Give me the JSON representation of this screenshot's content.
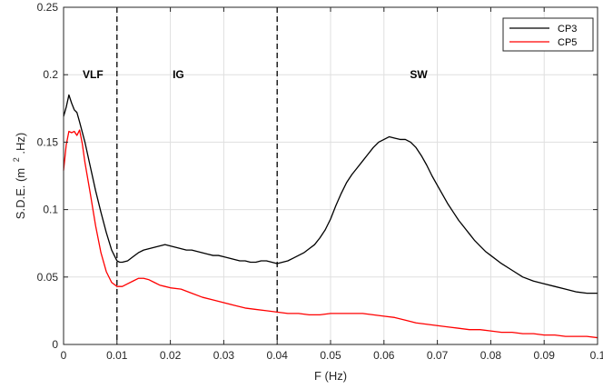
{
  "chart_data": {
    "type": "line",
    "xlabel": "F (Hz)",
    "ylabel_main": "S.D.E. (m",
    "ylabel_sup": "2",
    "ylabel_tail": ".Hz)",
    "xlim": [
      0,
      0.1
    ],
    "ylim": [
      0,
      0.25
    ],
    "x_ticks": [
      0,
      0.01,
      0.02,
      0.03,
      0.04,
      0.05,
      0.06,
      0.07,
      0.08,
      0.09,
      0.1
    ],
    "x_tick_labels": [
      "0",
      "0.01",
      "0.02",
      "0.03",
      "0.04",
      "0.05",
      "0.06",
      "0.07",
      "0.08",
      "0.09",
      "0.1"
    ],
    "y_ticks": [
      0,
      0.05,
      0.1,
      0.15,
      0.2,
      0.25
    ],
    "y_tick_labels": [
      "0",
      "0.05",
      "0.1",
      "0.15",
      "0.2",
      "0.25"
    ],
    "grid": true,
    "legend_position": "top-right",
    "region_boundaries": [
      0.01,
      0.04
    ],
    "regions": [
      {
        "label": "VLF",
        "x": 0.0055,
        "y": 0.2
      },
      {
        "label": "IG",
        "x": 0.0215,
        "y": 0.2
      },
      {
        "label": "SW",
        "x": 0.0665,
        "y": 0.2
      }
    ],
    "series": [
      {
        "name": "CP3",
        "color": "#000000",
        "x": [
          0,
          0.0005,
          0.001,
          0.0015,
          0.002,
          0.0025,
          0.003,
          0.004,
          0.005,
          0.006,
          0.007,
          0.008,
          0.009,
          0.01,
          0.0105,
          0.011,
          0.012,
          0.013,
          0.014,
          0.015,
          0.016,
          0.017,
          0.018,
          0.019,
          0.02,
          0.021,
          0.022,
          0.023,
          0.024,
          0.025,
          0.026,
          0.027,
          0.028,
          0.029,
          0.03,
          0.031,
          0.032,
          0.033,
          0.034,
          0.035,
          0.036,
          0.037,
          0.038,
          0.039,
          0.04,
          0.041,
          0.042,
          0.043,
          0.044,
          0.045,
          0.046,
          0.047,
          0.048,
          0.049,
          0.05,
          0.051,
          0.052,
          0.053,
          0.054,
          0.055,
          0.056,
          0.057,
          0.058,
          0.059,
          0.06,
          0.061,
          0.062,
          0.063,
          0.064,
          0.065,
          0.066,
          0.067,
          0.068,
          0.069,
          0.07,
          0.071,
          0.072,
          0.073,
          0.074,
          0.075,
          0.076,
          0.077,
          0.078,
          0.079,
          0.08,
          0.082,
          0.084,
          0.086,
          0.088,
          0.09,
          0.092,
          0.094,
          0.096,
          0.098,
          0.1
        ],
        "y": [
          0.169,
          0.176,
          0.185,
          0.179,
          0.174,
          0.172,
          0.165,
          0.15,
          0.132,
          0.114,
          0.098,
          0.083,
          0.07,
          0.062,
          0.061,
          0.061,
          0.062,
          0.065,
          0.068,
          0.07,
          0.071,
          0.072,
          0.073,
          0.074,
          0.073,
          0.072,
          0.071,
          0.07,
          0.07,
          0.069,
          0.068,
          0.067,
          0.066,
          0.066,
          0.065,
          0.064,
          0.063,
          0.062,
          0.062,
          0.061,
          0.061,
          0.062,
          0.062,
          0.061,
          0.06,
          0.061,
          0.062,
          0.064,
          0.066,
          0.068,
          0.071,
          0.074,
          0.079,
          0.085,
          0.093,
          0.103,
          0.112,
          0.12,
          0.126,
          0.131,
          0.136,
          0.141,
          0.146,
          0.15,
          0.152,
          0.154,
          0.153,
          0.152,
          0.152,
          0.15,
          0.146,
          0.14,
          0.133,
          0.125,
          0.118,
          0.111,
          0.104,
          0.098,
          0.092,
          0.087,
          0.082,
          0.077,
          0.073,
          0.069,
          0.066,
          0.06,
          0.055,
          0.05,
          0.047,
          0.045,
          0.043,
          0.041,
          0.039,
          0.038,
          0.038
        ]
      },
      {
        "name": "CP5",
        "color": "#ff0000",
        "x": [
          0,
          0.0005,
          0.001,
          0.0015,
          0.002,
          0.0025,
          0.003,
          0.0035,
          0.004,
          0.005,
          0.006,
          0.007,
          0.008,
          0.009,
          0.01,
          0.011,
          0.012,
          0.013,
          0.014,
          0.015,
          0.016,
          0.017,
          0.018,
          0.019,
          0.02,
          0.022,
          0.024,
          0.026,
          0.028,
          0.03,
          0.032,
          0.034,
          0.036,
          0.038,
          0.04,
          0.042,
          0.044,
          0.046,
          0.048,
          0.05,
          0.052,
          0.054,
          0.056,
          0.058,
          0.06,
          0.062,
          0.064,
          0.066,
          0.068,
          0.07,
          0.072,
          0.074,
          0.076,
          0.078,
          0.08,
          0.082,
          0.084,
          0.086,
          0.088,
          0.09,
          0.092,
          0.094,
          0.096,
          0.098,
          0.1
        ],
        "y": [
          0.129,
          0.148,
          0.158,
          0.157,
          0.158,
          0.155,
          0.159,
          0.149,
          0.135,
          0.112,
          0.088,
          0.068,
          0.054,
          0.046,
          0.043,
          0.043,
          0.045,
          0.047,
          0.049,
          0.049,
          0.048,
          0.046,
          0.044,
          0.043,
          0.042,
          0.041,
          0.038,
          0.035,
          0.033,
          0.031,
          0.029,
          0.027,
          0.026,
          0.025,
          0.024,
          0.023,
          0.023,
          0.022,
          0.022,
          0.023,
          0.023,
          0.023,
          0.023,
          0.022,
          0.021,
          0.02,
          0.018,
          0.016,
          0.015,
          0.014,
          0.013,
          0.012,
          0.011,
          0.011,
          0.01,
          0.009,
          0.009,
          0.008,
          0.008,
          0.007,
          0.007,
          0.006,
          0.006,
          0.006,
          0.005
        ]
      }
    ]
  }
}
